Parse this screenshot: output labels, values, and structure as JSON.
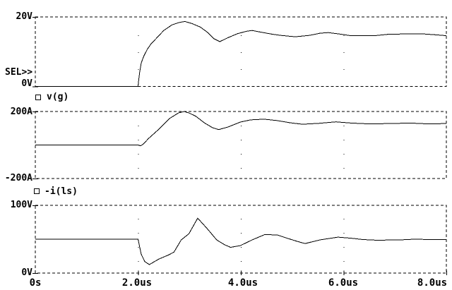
{
  "colors": {
    "background": "#ffffff",
    "foreground": "#000000"
  },
  "sel_indicator": "SEL>>",
  "x_axis": {
    "tick_labels": [
      "0s",
      "2.0us",
      "4.0us",
      "6.0us",
      "8.0us"
    ],
    "tick_values": [
      0,
      2,
      4,
      6,
      8
    ],
    "unit": "us"
  },
  "chart_data": [
    {
      "type": "line",
      "position": "top",
      "selected": true,
      "xlim": [
        0,
        8
      ],
      "ylim": [
        0,
        20
      ],
      "y_axis": {
        "top": "20V",
        "bottom": "0V"
      },
      "legend": "v(g)",
      "grid": "dotted vertical lines at 2us, 4us, 6us; dashed frame",
      "series": [
        {
          "name": "v(g)",
          "unit": "V",
          "points": [
            [
              0,
              0
            ],
            [
              2.0,
              0
            ],
            [
              2.01,
              1.5
            ],
            [
              2.03,
              4
            ],
            [
              2.06,
              6.7
            ],
            [
              2.11,
              8.7
            ],
            [
              2.18,
              10.7
            ],
            [
              2.25,
              12.2
            ],
            [
              2.36,
              13.9
            ],
            [
              2.5,
              16.1
            ],
            [
              2.66,
              17.7
            ],
            [
              2.8,
              18.4
            ],
            [
              2.91,
              18.7
            ],
            [
              3.05,
              18.1
            ],
            [
              3.21,
              17.1
            ],
            [
              3.34,
              15.7
            ],
            [
              3.48,
              13.7
            ],
            [
              3.59,
              12.9
            ],
            [
              3.76,
              14.1
            ],
            [
              3.94,
              15.2
            ],
            [
              4.12,
              15.9
            ],
            [
              4.22,
              16.1
            ],
            [
              4.4,
              15.6
            ],
            [
              4.58,
              15.1
            ],
            [
              4.77,
              14.7
            ],
            [
              5.06,
              14.3
            ],
            [
              5.34,
              14.7
            ],
            [
              5.54,
              15.3
            ],
            [
              5.7,
              15.5
            ],
            [
              5.96,
              15.0
            ],
            [
              6.14,
              14.6
            ],
            [
              6.6,
              14.6
            ],
            [
              6.87,
              15.0
            ],
            [
              7.19,
              15.1
            ],
            [
              7.56,
              15.1
            ],
            [
              7.84,
              14.8
            ],
            [
              8.0,
              14.6
            ]
          ]
        }
      ]
    },
    {
      "type": "line",
      "position": "middle",
      "selected": false,
      "xlim": [
        0,
        8
      ],
      "ylim": [
        -200,
        200
      ],
      "y_axis": {
        "top": "200A",
        "bottom": "-200A"
      },
      "legend": "-i(ls)",
      "grid": "dotted vertical lines at 2us, 4us, 6us; dashed frame",
      "series": [
        {
          "name": "-i(ls)",
          "unit": "A",
          "points": [
            [
              0,
              0
            ],
            [
              2.0,
              0
            ],
            [
              2.05,
              -5
            ],
            [
              2.1,
              5
            ],
            [
              2.2,
              38
            ],
            [
              2.38,
              87
            ],
            [
              2.61,
              158
            ],
            [
              2.79,
              192
            ],
            [
              2.9,
              200
            ],
            [
              3.0,
              190
            ],
            [
              3.12,
              172
            ],
            [
              3.3,
              130
            ],
            [
              3.45,
              103
            ],
            [
              3.57,
              92
            ],
            [
              3.76,
              108
            ],
            [
              3.99,
              137
            ],
            [
              4.19,
              150
            ],
            [
              4.45,
              154
            ],
            [
              4.7,
              146
            ],
            [
              4.95,
              133
            ],
            [
              5.2,
              124
            ],
            [
              5.5,
              129
            ],
            [
              5.85,
              138
            ],
            [
              6.15,
              131
            ],
            [
              6.5,
              126
            ],
            [
              6.9,
              128
            ],
            [
              7.3,
              131
            ],
            [
              7.65,
              126
            ],
            [
              8.0,
              128
            ]
          ]
        }
      ]
    },
    {
      "type": "line",
      "position": "bottom",
      "selected": false,
      "xlim": [
        0,
        8
      ],
      "ylim": [
        0,
        100
      ],
      "y_axis": {
        "top": "100V",
        "bottom": "0V"
      },
      "legend": null,
      "grid": "dotted vertical lines at 2us, 4us, 6us; dashed frame",
      "series": [
        {
          "name": "",
          "unit": "V",
          "points": [
            [
              0,
              50
            ],
            [
              2.0,
              50
            ],
            [
              2.06,
              28
            ],
            [
              2.13,
              17
            ],
            [
              2.22,
              12.5
            ],
            [
              2.4,
              20.5
            ],
            [
              2.6,
              27
            ],
            [
              2.7,
              31
            ],
            [
              2.84,
              49
            ],
            [
              2.99,
              58
            ],
            [
              3.16,
              81
            ],
            [
              3.34,
              66
            ],
            [
              3.53,
              49
            ],
            [
              3.68,
              42
            ],
            [
              3.8,
              38
            ],
            [
              3.99,
              40.5
            ],
            [
              4.22,
              49
            ],
            [
              4.47,
              57
            ],
            [
              4.72,
              56
            ],
            [
              4.9,
              51.5
            ],
            [
              5.09,
              47
            ],
            [
              5.25,
              43.5
            ],
            [
              5.54,
              49
            ],
            [
              5.89,
              53
            ],
            [
              6.15,
              51.5
            ],
            [
              6.37,
              49.5
            ],
            [
              6.64,
              48.5
            ],
            [
              7.1,
              49
            ],
            [
              7.38,
              50
            ],
            [
              7.7,
              49.5
            ],
            [
              8.0,
              49.5
            ]
          ]
        }
      ]
    }
  ]
}
